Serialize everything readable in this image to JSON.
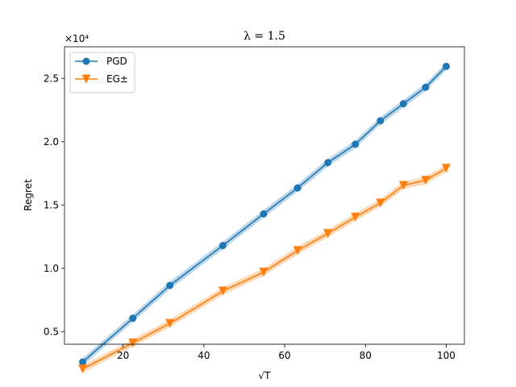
{
  "chart_data": {
    "type": "line",
    "title": "λ = 1.5",
    "xlabel": "√T",
    "ylabel": "Regret",
    "y_scale_label": "×10⁴",
    "xlim": [
      5.5,
      104.5
    ],
    "ylim": [
      0.4,
      2.75
    ],
    "xticks": [
      20,
      40,
      60,
      80,
      100
    ],
    "xtick_labels": [
      "20",
      "40",
      "60",
      "80",
      "100"
    ],
    "yticks": [
      0.5,
      1.0,
      1.5,
      2.0,
      2.5
    ],
    "ytick_labels": [
      "0.5",
      "1.0",
      "1.5",
      "2.0",
      "2.5"
    ],
    "grid": false,
    "legend_position": "top-left",
    "x": [
      10,
      22.4,
      31.6,
      44.7,
      54.8,
      63.2,
      70.7,
      77.5,
      83.7,
      89.4,
      94.9,
      100
    ],
    "series": [
      {
        "name": "PGD",
        "color": "#1f77b4",
        "marker": "circle",
        "values": [
          0.26,
          0.605,
          0.865,
          1.18,
          1.43,
          1.635,
          1.835,
          1.98,
          2.165,
          2.3,
          2.43,
          2.595
        ],
        "band": 0.03
      },
      {
        "name": "EG±",
        "color": "#ff7f0e",
        "marker": "triangle-down",
        "values": [
          0.205,
          0.41,
          0.565,
          0.82,
          0.97,
          1.14,
          1.275,
          1.405,
          1.515,
          1.655,
          1.695,
          1.79
        ],
        "band": 0.03
      }
    ]
  }
}
